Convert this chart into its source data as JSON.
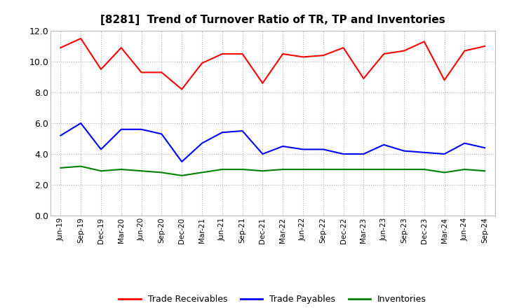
{
  "title": "[8281]  Trend of Turnover Ratio of TR, TP and Inventories",
  "xlabels": [
    "Jun-19",
    "Sep-19",
    "Dec-19",
    "Mar-20",
    "Jun-20",
    "Sep-20",
    "Dec-20",
    "Mar-21",
    "Jun-21",
    "Sep-21",
    "Dec-21",
    "Mar-22",
    "Jun-22",
    "Sep-22",
    "Dec-22",
    "Mar-23",
    "Jun-23",
    "Sep-23",
    "Dec-23",
    "Mar-24",
    "Jun-24",
    "Sep-24"
  ],
  "trade_receivables": [
    10.9,
    11.5,
    9.5,
    10.9,
    9.3,
    9.3,
    8.2,
    9.9,
    10.5,
    10.5,
    8.6,
    10.5,
    10.3,
    10.4,
    10.9,
    8.9,
    10.5,
    10.7,
    11.3,
    8.8,
    10.7,
    11.0
  ],
  "trade_payables": [
    5.2,
    6.0,
    4.3,
    5.6,
    5.6,
    5.3,
    3.5,
    4.7,
    5.4,
    5.5,
    4.0,
    4.5,
    4.3,
    4.3,
    4.0,
    4.0,
    4.6,
    4.2,
    4.1,
    4.0,
    4.7,
    4.4
  ],
  "inventories": [
    3.1,
    3.2,
    2.9,
    3.0,
    2.9,
    2.8,
    2.6,
    2.8,
    3.0,
    3.0,
    2.9,
    3.0,
    3.0,
    3.0,
    3.0,
    3.0,
    3.0,
    3.0,
    3.0,
    2.8,
    3.0,
    2.9
  ],
  "tr_color": "#ff0000",
  "tp_color": "#0000ff",
  "inv_color": "#008000",
  "ylim": [
    0.0,
    12.0
  ],
  "yticks": [
    0.0,
    2.0,
    4.0,
    6.0,
    8.0,
    10.0,
    12.0
  ],
  "legend_labels": [
    "Trade Receivables",
    "Trade Payables",
    "Inventories"
  ],
  "bg_color": "#ffffff",
  "grid_color": "#999999"
}
